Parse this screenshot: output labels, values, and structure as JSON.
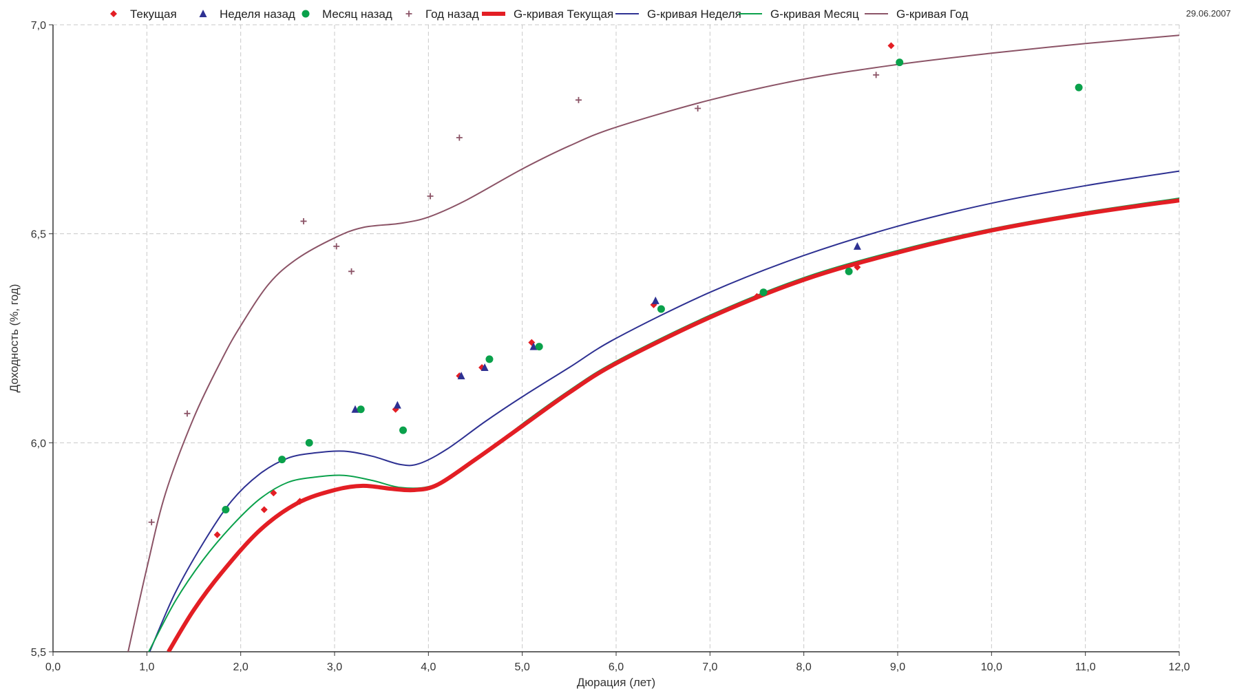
{
  "date_label": "29.06.2007",
  "chart_data": {
    "type": "scatter",
    "title": "",
    "xlabel": "Дюрация (лет)",
    "ylabel": "Доходность (%, год)",
    "xlim": [
      0,
      12
    ],
    "ylim": [
      5.5,
      7.0
    ],
    "x_ticks": [
      0,
      1,
      2,
      3,
      4,
      5,
      6,
      7,
      8,
      9,
      10,
      11,
      12
    ],
    "x_tick_labels": [
      "0,0",
      "1,0",
      "2,0",
      "3,0",
      "4,0",
      "5,0",
      "6,0",
      "7,0",
      "8,0",
      "9,0",
      "10,0",
      "11,0",
      "12,0"
    ],
    "y_ticks": [
      5.5,
      6.0,
      6.5,
      7.0
    ],
    "y_tick_labels": [
      "5,5",
      "6,0",
      "6,5",
      "7,0"
    ],
    "grid": true,
    "legend_position": "top",
    "series": [
      {
        "name": "Текущая",
        "kind": "points",
        "marker": "diamond",
        "color": "#e31e24",
        "x": [
          1.75,
          2.25,
          2.35,
          2.63,
          3.65,
          4.33,
          4.57,
          5.1,
          6.4,
          7.5,
          8.57,
          8.93
        ],
        "y": [
          5.78,
          5.84,
          5.88,
          5.86,
          6.08,
          6.16,
          6.18,
          6.24,
          6.33,
          6.35,
          6.42,
          6.95
        ]
      },
      {
        "name": "Неделя назад",
        "kind": "points",
        "marker": "triangle",
        "color": "#2e3192",
        "x": [
          3.22,
          3.67,
          4.35,
          4.6,
          5.12,
          6.42,
          8.57
        ],
        "y": [
          6.08,
          6.09,
          6.16,
          6.18,
          6.23,
          6.34,
          6.47
        ]
      },
      {
        "name": "Месяц назад",
        "kind": "points",
        "marker": "circle",
        "color": "#0aa14b",
        "x": [
          1.84,
          2.44,
          2.73,
          3.28,
          3.73,
          4.65,
          5.18,
          6.48,
          7.57,
          8.48,
          9.02,
          10.93
        ],
        "y": [
          5.84,
          5.96,
          6.0,
          6.08,
          6.03,
          6.2,
          6.23,
          6.32,
          6.36,
          6.41,
          6.91,
          6.85
        ]
      },
      {
        "name": "Год назад",
        "kind": "points",
        "marker": "plus",
        "color": "#8b5366",
        "x": [
          1.05,
          1.43,
          2.67,
          3.02,
          3.18,
          4.02,
          4.33,
          5.6,
          6.87,
          8.77
        ],
        "y": [
          5.81,
          6.07,
          6.53,
          6.47,
          6.41,
          6.59,
          6.73,
          6.82,
          6.8,
          6.88
        ]
      },
      {
        "name": "G-кривая Текущая",
        "kind": "line",
        "color": "#e31e24",
        "width": 6,
        "x": [
          1.23,
          1.5,
          1.8,
          2.2,
          2.6,
          3.0,
          3.3,
          3.6,
          3.85,
          4.1,
          4.5,
          5.0,
          5.5,
          6.0,
          7.0,
          8.0,
          9.0,
          10.0,
          11.0,
          12.0
        ],
        "y": [
          5.5,
          5.6,
          5.69,
          5.79,
          5.855,
          5.887,
          5.897,
          5.89,
          5.887,
          5.9,
          5.96,
          6.04,
          6.12,
          6.19,
          6.3,
          6.39,
          6.455,
          6.508,
          6.548,
          6.58
        ]
      },
      {
        "name": "G-кривая Неделя",
        "kind": "line",
        "color": "#2e3192",
        "width": 2,
        "x": [
          1.03,
          1.3,
          1.6,
          1.9,
          2.2,
          2.5,
          2.8,
          3.1,
          3.4,
          3.7,
          3.9,
          4.2,
          4.6,
          5.0,
          5.5,
          6.0,
          7.0,
          8.0,
          9.0,
          10.0,
          11.0,
          12.0
        ],
        "y": [
          5.5,
          5.64,
          5.76,
          5.86,
          5.925,
          5.963,
          5.976,
          5.98,
          5.968,
          5.948,
          5.95,
          5.985,
          6.05,
          6.11,
          6.18,
          6.25,
          6.36,
          6.448,
          6.518,
          6.573,
          6.615,
          6.65
        ]
      },
      {
        "name": "G-кривая Месяц",
        "kind": "line",
        "color": "#0aa14b",
        "width": 2,
        "x": [
          1.02,
          1.3,
          1.6,
          1.9,
          2.2,
          2.5,
          2.8,
          3.1,
          3.4,
          3.7,
          4.0,
          4.3,
          4.6,
          5.0,
          5.5,
          6.0,
          7.0,
          8.0,
          9.0,
          10.0,
          11.0,
          12.0
        ],
        "y": [
          5.5,
          5.62,
          5.72,
          5.8,
          5.865,
          5.905,
          5.918,
          5.922,
          5.91,
          5.893,
          5.895,
          5.925,
          5.975,
          6.045,
          6.125,
          6.195,
          6.305,
          6.395,
          6.46,
          6.512,
          6.552,
          6.585
        ]
      },
      {
        "name": "G-кривая Год",
        "kind": "line",
        "color": "#8b5366",
        "width": 2,
        "x": [
          0.8,
          1.0,
          1.2,
          1.5,
          1.8,
          2.0,
          2.3,
          2.6,
          3.0,
          3.3,
          3.7,
          4.0,
          4.4,
          5.0,
          5.5,
          6.0,
          7.0,
          8.0,
          9.0,
          10.0,
          11.0,
          12.0
        ],
        "y": [
          5.5,
          5.7,
          5.88,
          6.06,
          6.2,
          6.28,
          6.38,
          6.44,
          6.49,
          6.515,
          6.525,
          6.54,
          6.58,
          6.655,
          6.71,
          6.755,
          6.82,
          6.87,
          6.905,
          6.932,
          6.955,
          6.975
        ]
      }
    ]
  }
}
